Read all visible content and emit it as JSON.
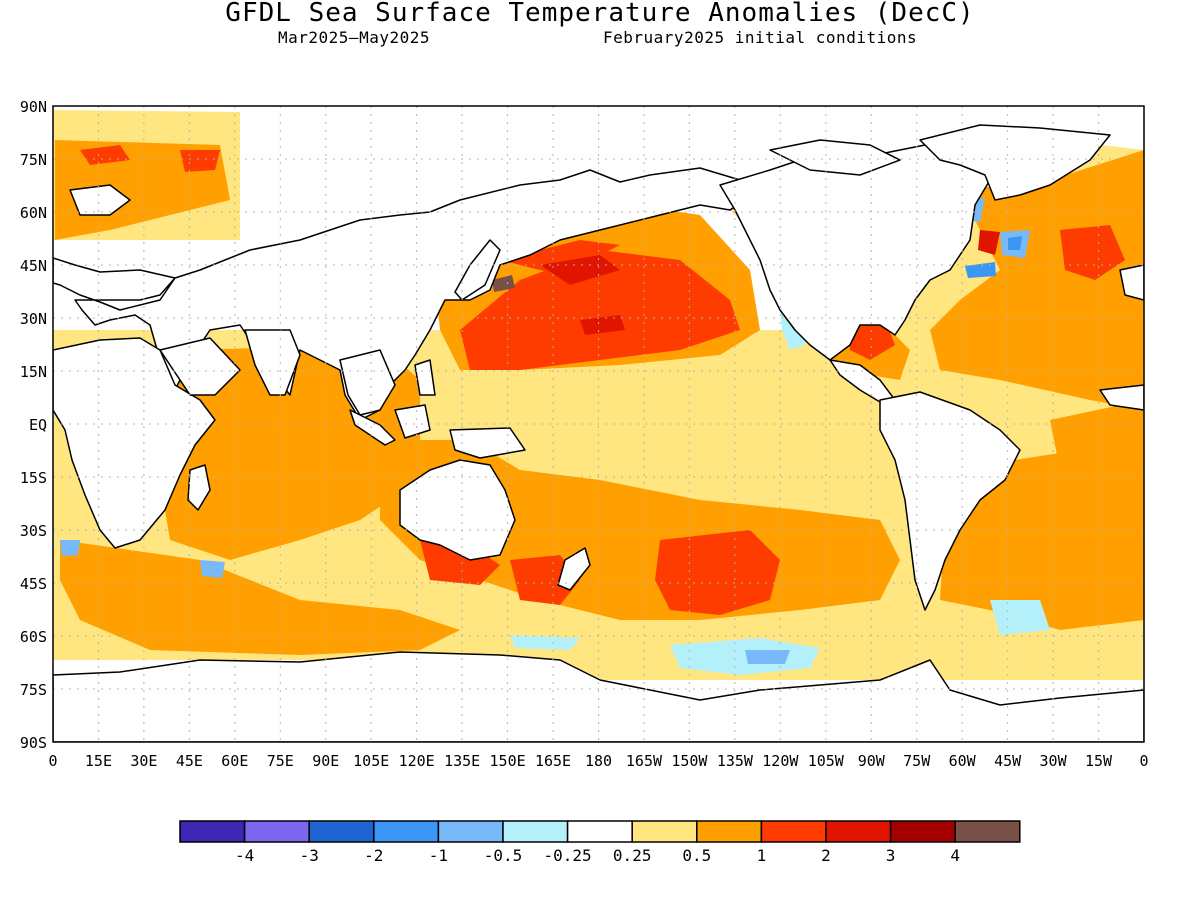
{
  "title": "GFDL Sea Surface Temperature Anomalies (DecC)",
  "period": "Mar2025—May2025",
  "initial_conditions": "February2025 initial conditions",
  "lat_labels": [
    "90N",
    "75N",
    "60N",
    "45N",
    "30N",
    "15N",
    "EQ",
    "15S",
    "30S",
    "45S",
    "60S",
    "75S",
    "90S"
  ],
  "lon_labels": [
    "0",
    "15E",
    "30E",
    "45E",
    "60E",
    "75E",
    "90E",
    "105E",
    "120E",
    "135E",
    "150E",
    "165E",
    "180",
    "165W",
    "150W",
    "135W",
    "120W",
    "105W",
    "90W",
    "75W",
    "60W",
    "45W",
    "30W",
    "15W",
    "0"
  ],
  "colors": {
    "land": "#ffffff",
    "coast": "#000000",
    "grid": "#b4b4b4",
    "c_pale": "#ffe680",
    "c_orange": "#ffa000",
    "c_red": "#ff3c00",
    "c_deepred": "#e11400",
    "c_brown": "#785046",
    "c_lightblue": "#b4f0fa",
    "c_blue": "#78b9fa",
    "c_medblue": "#3c96f5"
  },
  "colorbar": {
    "colors": [
      "#3c28b4",
      "#7b68ee",
      "#1e64d2",
      "#3c96f5",
      "#78b9fa",
      "#b4f0fa",
      "#ffffff",
      "#ffe680",
      "#ffa000",
      "#ff3c00",
      "#e11400",
      "#a50000",
      "#785046"
    ],
    "labels": [
      "-4",
      "-3",
      "-2",
      "-1",
      "-0.5",
      "-0.25",
      "0.25",
      "0.5",
      "1",
      "2",
      "3",
      "4"
    ]
  }
}
